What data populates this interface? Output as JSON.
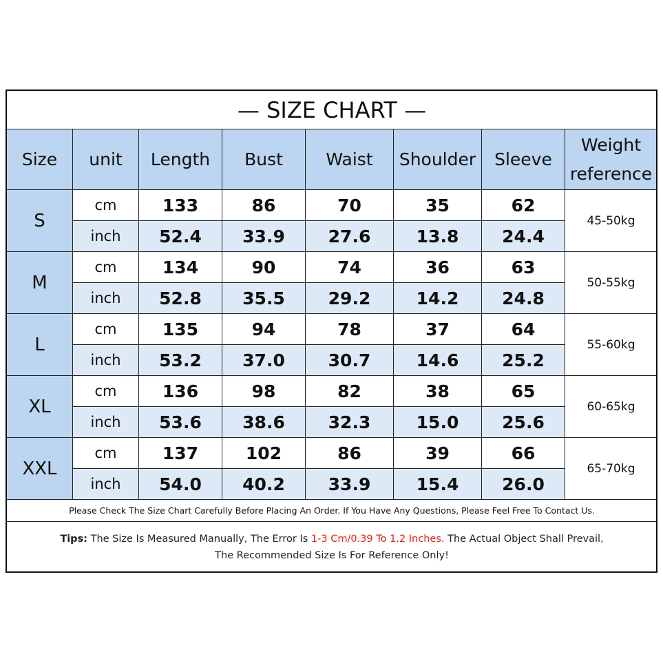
{
  "title": "— SIZE CHART —",
  "headers": [
    "Size",
    "unit",
    "Length",
    "Bust",
    "Waist",
    "Shoulder",
    "Sleeve",
    "Weight reference"
  ],
  "sizes": [
    {
      "size": "S",
      "weight": "45-50kg",
      "rows": [
        {
          "unit": "cm",
          "values": [
            "133",
            "86",
            "70",
            "35",
            "62"
          ]
        },
        {
          "unit": "inch",
          "values": [
            "52.4",
            "33.9",
            "27.6",
            "13.8",
            "24.4"
          ]
        }
      ]
    },
    {
      "size": "M",
      "weight": "50-55kg",
      "rows": [
        {
          "unit": "cm",
          "values": [
            "134",
            "90",
            "74",
            "36",
            "63"
          ]
        },
        {
          "unit": "inch",
          "values": [
            "52.8",
            "35.5",
            "29.2",
            "14.2",
            "24.8"
          ]
        }
      ]
    },
    {
      "size": "L",
      "weight": "55-60kg",
      "rows": [
        {
          "unit": "cm",
          "values": [
            "135",
            "94",
            "78",
            "37",
            "64"
          ]
        },
        {
          "unit": "inch",
          "values": [
            "53.2",
            "37.0",
            "30.7",
            "14.6",
            "25.2"
          ]
        }
      ]
    },
    {
      "size": "XL",
      "weight": "60-65kg",
      "rows": [
        {
          "unit": "cm",
          "values": [
            "136",
            "98",
            "82",
            "38",
            "65"
          ]
        },
        {
          "unit": "inch",
          "values": [
            "53.6",
            "38.6",
            "32.3",
            "15.0",
            "25.6"
          ]
        }
      ]
    },
    {
      "size": "XXL",
      "weight": "65-70kg",
      "rows": [
        {
          "unit": "cm",
          "values": [
            "137",
            "102",
            "86",
            "39",
            "66"
          ]
        },
        {
          "unit": "inch",
          "values": [
            "54.0",
            "40.2",
            "33.9",
            "15.4",
            "26.0"
          ]
        }
      ]
    }
  ],
  "note": "Please Check The Size Chart Carefully Before Placing An Order. If You Have Any Questions, Please Feel Free To Contact Us.",
  "tips": {
    "label": "Tips:",
    "text": "The Size Is Measured Manually, The Error Is",
    "highlight": "1-3 Cm/0.39 To 1.2 Inches.",
    "text2": "The Actual Object Shall Prevail,",
    "line2": "The Recommended Size Is For Reference Only!"
  }
}
